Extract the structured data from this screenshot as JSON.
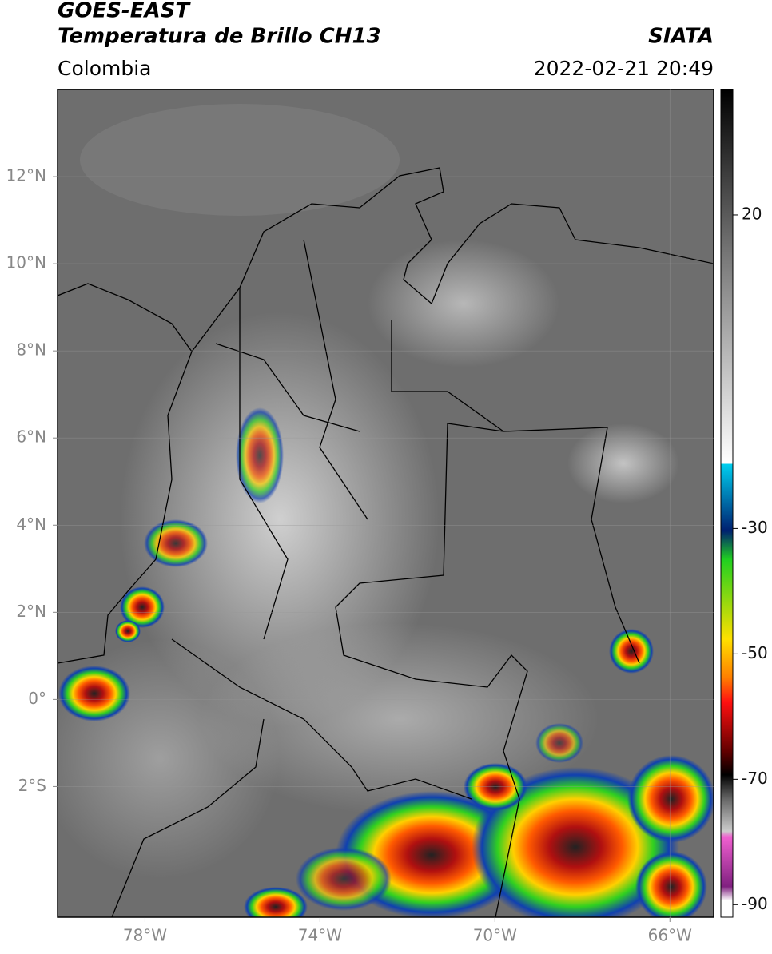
{
  "header": {
    "title": "GOES-EAST",
    "subtitle": "Temperatura de Brillo CH13",
    "source": "SIATA",
    "region": "Colombia",
    "datetime": "2022-02-21 20:49"
  },
  "map": {
    "type": "map",
    "xlim": [
      -80,
      -65
    ],
    "ylim": [
      -5,
      14
    ],
    "xticks": [
      {
        "value": -78,
        "label": "78°W"
      },
      {
        "value": -74,
        "label": "74°W"
      },
      {
        "value": -70,
        "label": "70°W"
      },
      {
        "value": -66,
        "label": "66°W"
      }
    ],
    "yticks": [
      {
        "value": -2,
        "label": "2°S"
      },
      {
        "value": 0,
        "label": "0°"
      },
      {
        "value": 2,
        "label": "2°N"
      },
      {
        "value": 4,
        "label": "4°N"
      },
      {
        "value": 6,
        "label": "6°N"
      },
      {
        "value": 8,
        "label": "8°N"
      },
      {
        "value": 10,
        "label": "10°N"
      },
      {
        "value": 12,
        "label": "12°N"
      }
    ],
    "grid": true,
    "colorbar": {
      "clim": [
        -92,
        40
      ],
      "ticks": [
        20,
        -30,
        -50,
        -70,
        -90
      ]
    }
  }
}
